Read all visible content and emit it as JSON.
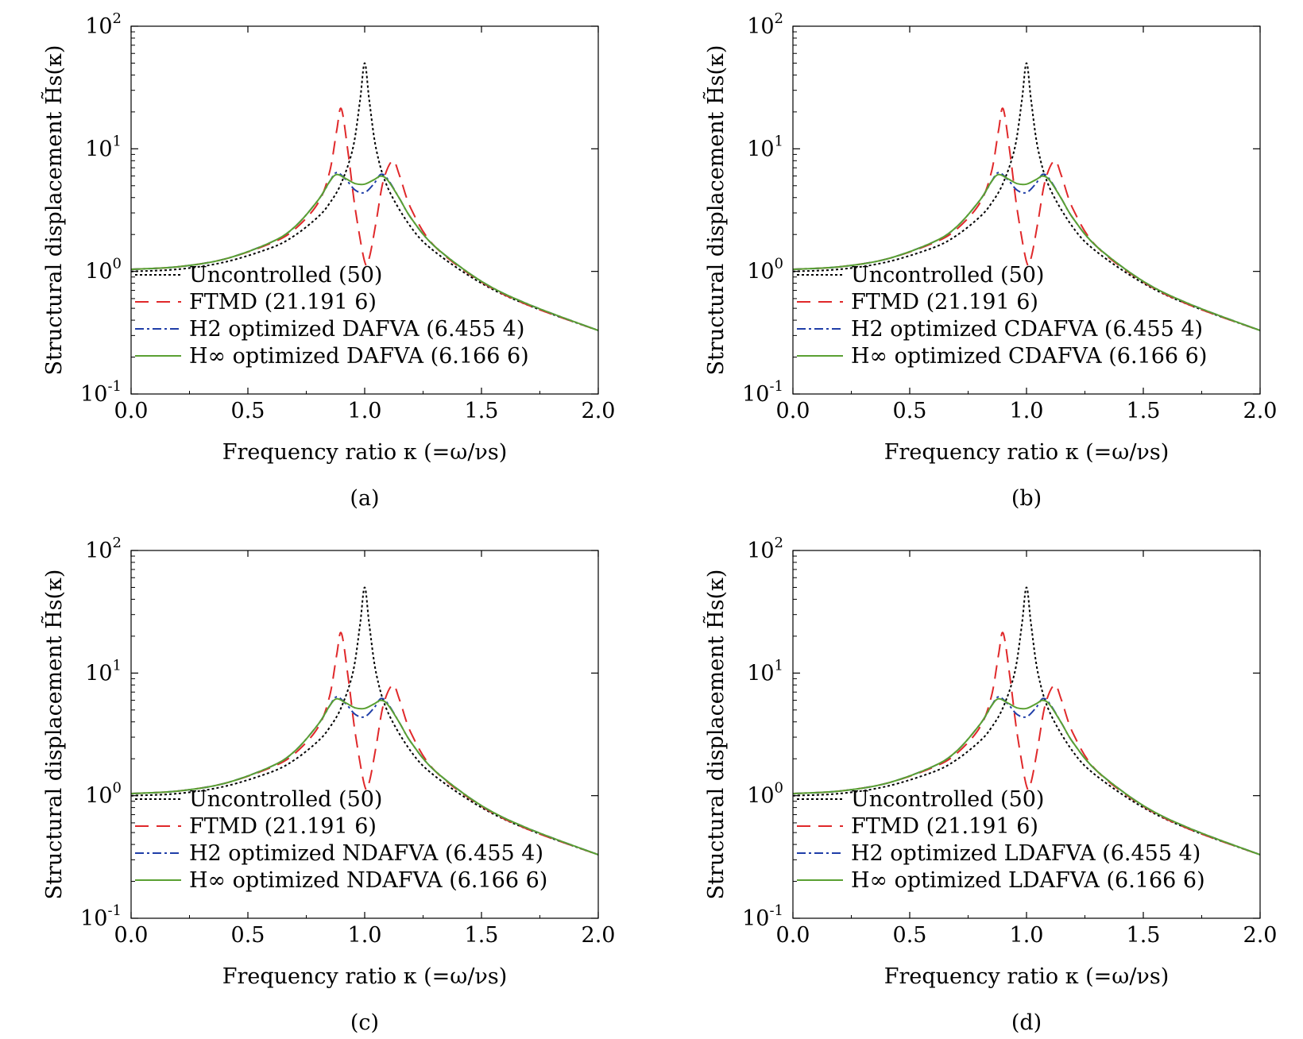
{
  "figure": {
    "panels": [
      {
        "caption": "(a)",
        "ylabel": "Structural displacement H̃s(κ)",
        "xlabel": "Frequency ratio κ (=ω/νs)",
        "legend": [
          "Uncontrolled (50)",
          "FTMD (21.191 6)",
          "H2 optimized DAFVA (6.455 4)",
          "H∞ optimized DAFVA (6.166 6)"
        ]
      },
      {
        "caption": "(b)",
        "ylabel": "Structural displacement H̃s(κ)",
        "xlabel": "Frequency ratio κ (=ω/νs)",
        "legend": [
          "Uncontrolled (50)",
          "FTMD (21.191 6)",
          "H2 optimized CDAFVA (6.455 4)",
          "H∞ optimized CDAFVA (6.166 6)"
        ]
      },
      {
        "caption": "(c)",
        "ylabel": "Structural displacement H̃s(κ)",
        "xlabel": "Frequency ratio κ (=ω/νs)",
        "legend": [
          "Uncontrolled (50)",
          "FTMD (21.191 6)",
          "H2 optimized NDAFVA (6.455 4)",
          "H∞ optimized NDAFVA (6.166 6)"
        ]
      },
      {
        "caption": "(d)",
        "ylabel": "Structural displacement H̃s(κ)",
        "xlabel": "Frequency ratio κ (=ω/νs)",
        "legend": [
          "Uncontrolled (50)",
          "FTMD (21.191 6)",
          "H2 optimized LDAFVA (6.455 4)",
          "H∞ optimized LDAFVA (6.166 6)"
        ]
      }
    ]
  },
  "chart_data": [
    {
      "type": "line",
      "caption": "(a)",
      "xlabel": "Frequency ratio κ (=ω/νs)",
      "ylabel": "Structural displacement H̃s(κ)",
      "xlim": [
        0,
        2
      ],
      "ylim": [
        0.1,
        100
      ],
      "yscale": "log",
      "xticks": [
        "0.0",
        "0.5",
        "1.0",
        "1.5",
        "2.0"
      ],
      "yticks": [
        "10^-1",
        "10^0",
        "10^1",
        "10^2"
      ],
      "legend_position": "lower-left",
      "series": [
        {
          "name": "Uncontrolled (50)",
          "color": "#000000",
          "style": "dotted",
          "x": [
            0,
            0.2,
            0.4,
            0.6,
            0.7,
            0.8,
            0.85,
            0.9,
            0.95,
            0.98,
            1.0,
            1.02,
            1.05,
            1.1,
            1.2,
            1.3,
            1.5,
            1.7,
            2.0
          ],
          "y": [
            1.0,
            1.04,
            1.19,
            1.56,
            1.96,
            2.78,
            3.6,
            5.26,
            10.2,
            24.7,
            50,
            24.5,
            9.8,
            4.76,
            2.27,
            1.45,
            0.8,
            0.53,
            0.33
          ]
        },
        {
          "name": "FTMD (21.191 6)",
          "color": "#e0282a",
          "style": "dashed",
          "x": [
            0,
            0.2,
            0.4,
            0.6,
            0.7,
            0.8,
            0.85,
            0.88,
            0.9,
            0.93,
            0.96,
            1.0,
            1.02,
            1.05,
            1.08,
            1.12,
            1.15,
            1.2,
            1.3,
            1.5,
            1.7,
            2.0
          ],
          "y": [
            1.04,
            1.09,
            1.26,
            1.7,
            2.2,
            3.6,
            6.5,
            14,
            21.2,
            9,
            3.2,
            1.2,
            1.3,
            2.6,
            5.5,
            8.0,
            6.0,
            3.2,
            1.6,
            0.82,
            0.53,
            0.33
          ]
        },
        {
          "name": "H2 optimized DAFVA (6.455 4)",
          "color": "#1f3ea8",
          "style": "dashdot",
          "x": [
            0,
            0.2,
            0.4,
            0.6,
            0.7,
            0.8,
            0.85,
            0.88,
            0.92,
            0.96,
            1.0,
            1.04,
            1.07,
            1.1,
            1.15,
            1.2,
            1.3,
            1.5,
            1.7,
            2.0
          ],
          "y": [
            1.04,
            1.09,
            1.26,
            1.73,
            2.3,
            3.8,
            5.4,
            6.4,
            5.6,
            4.6,
            4.4,
            5.2,
            6.2,
            5.6,
            3.9,
            2.7,
            1.6,
            0.83,
            0.54,
            0.33
          ]
        },
        {
          "name": "H∞ optimized DAFVA (6.166 6)",
          "color": "#5aa032",
          "style": "solid",
          "x": [
            0,
            0.2,
            0.4,
            0.6,
            0.7,
            0.8,
            0.85,
            0.88,
            0.92,
            0.96,
            1.0,
            1.04,
            1.07,
            1.1,
            1.15,
            1.2,
            1.3,
            1.5,
            1.7,
            2.0
          ],
          "y": [
            1.04,
            1.09,
            1.26,
            1.73,
            2.3,
            3.8,
            5.4,
            6.17,
            5.7,
            5.2,
            5.15,
            5.6,
            6.0,
            5.5,
            3.9,
            2.7,
            1.6,
            0.83,
            0.54,
            0.33
          ]
        }
      ]
    },
    {
      "type": "line",
      "caption": "(b)",
      "xlabel": "Frequency ratio κ (=ω/νs)",
      "ylabel": "Structural displacement H̃s(κ)",
      "xlim": [
        0,
        2
      ],
      "ylim": [
        0.1,
        100
      ],
      "yscale": "log",
      "xticks": [
        "0.0",
        "0.5",
        "1.0",
        "1.5",
        "2.0"
      ],
      "yticks": [
        "10^-1",
        "10^0",
        "10^1",
        "10^2"
      ],
      "legend_position": "lower-left",
      "series": [
        {
          "name": "Uncontrolled (50)",
          "color": "#000000",
          "style": "dotted",
          "x": [
            0,
            0.2,
            0.4,
            0.6,
            0.7,
            0.8,
            0.85,
            0.9,
            0.95,
            0.98,
            1.0,
            1.02,
            1.05,
            1.1,
            1.2,
            1.3,
            1.5,
            1.7,
            2.0
          ],
          "y": [
            1.0,
            1.04,
            1.19,
            1.56,
            1.96,
            2.78,
            3.6,
            5.26,
            10.2,
            24.7,
            50,
            24.5,
            9.8,
            4.76,
            2.27,
            1.45,
            0.8,
            0.53,
            0.33
          ]
        },
        {
          "name": "FTMD (21.191 6)",
          "color": "#e0282a",
          "style": "dashed",
          "x": [
            0,
            0.2,
            0.4,
            0.6,
            0.7,
            0.8,
            0.85,
            0.88,
            0.9,
            0.93,
            0.96,
            1.0,
            1.02,
            1.05,
            1.08,
            1.12,
            1.15,
            1.2,
            1.3,
            1.5,
            1.7,
            2.0
          ],
          "y": [
            1.04,
            1.09,
            1.26,
            1.7,
            2.2,
            3.6,
            6.5,
            14,
            21.2,
            9,
            3.2,
            1.2,
            1.3,
            2.6,
            5.5,
            8.0,
            6.0,
            3.2,
            1.6,
            0.82,
            0.53,
            0.33
          ]
        },
        {
          "name": "H2 optimized CDAFVA (6.455 4)",
          "color": "#1f3ea8",
          "style": "dashdot",
          "x": [
            0,
            0.2,
            0.4,
            0.6,
            0.7,
            0.8,
            0.85,
            0.88,
            0.92,
            0.96,
            1.0,
            1.04,
            1.07,
            1.1,
            1.15,
            1.2,
            1.3,
            1.5,
            1.7,
            2.0
          ],
          "y": [
            1.04,
            1.09,
            1.26,
            1.73,
            2.3,
            3.8,
            5.4,
            6.4,
            5.6,
            4.6,
            4.4,
            5.2,
            6.2,
            5.6,
            3.9,
            2.7,
            1.6,
            0.83,
            0.54,
            0.33
          ]
        },
        {
          "name": "H∞ optimized CDAFVA (6.166 6)",
          "color": "#5aa032",
          "style": "solid",
          "x": [
            0,
            0.2,
            0.4,
            0.6,
            0.7,
            0.8,
            0.85,
            0.88,
            0.92,
            0.96,
            1.0,
            1.04,
            1.07,
            1.1,
            1.15,
            1.2,
            1.3,
            1.5,
            1.7,
            2.0
          ],
          "y": [
            1.04,
            1.09,
            1.26,
            1.73,
            2.3,
            3.8,
            5.4,
            6.17,
            5.7,
            5.2,
            5.15,
            5.6,
            6.0,
            5.5,
            3.9,
            2.7,
            1.6,
            0.83,
            0.54,
            0.33
          ]
        }
      ]
    },
    {
      "type": "line",
      "caption": "(c)",
      "xlabel": "Frequency ratio κ (=ω/νs)",
      "ylabel": "Structural displacement H̃s(κ)",
      "xlim": [
        0,
        2
      ],
      "ylim": [
        0.1,
        100
      ],
      "yscale": "log",
      "xticks": [
        "0.0",
        "0.5",
        "1.0",
        "1.5",
        "2.0"
      ],
      "yticks": [
        "10^-1",
        "10^0",
        "10^1",
        "10^2"
      ],
      "legend_position": "lower-left",
      "series": [
        {
          "name": "Uncontrolled (50)",
          "color": "#000000",
          "style": "dotted",
          "x": [
            0,
            0.2,
            0.4,
            0.6,
            0.7,
            0.8,
            0.85,
            0.9,
            0.95,
            0.98,
            1.0,
            1.02,
            1.05,
            1.1,
            1.2,
            1.3,
            1.5,
            1.7,
            2.0
          ],
          "y": [
            1.0,
            1.04,
            1.19,
            1.56,
            1.96,
            2.78,
            3.6,
            5.26,
            10.2,
            24.7,
            50,
            24.5,
            9.8,
            4.76,
            2.27,
            1.45,
            0.8,
            0.53,
            0.33
          ]
        },
        {
          "name": "FTMD (21.191 6)",
          "color": "#e0282a",
          "style": "dashed",
          "x": [
            0,
            0.2,
            0.4,
            0.6,
            0.7,
            0.8,
            0.85,
            0.88,
            0.9,
            0.93,
            0.96,
            1.0,
            1.02,
            1.05,
            1.08,
            1.12,
            1.15,
            1.2,
            1.3,
            1.5,
            1.7,
            2.0
          ],
          "y": [
            1.04,
            1.09,
            1.26,
            1.7,
            2.2,
            3.6,
            6.5,
            14,
            21.2,
            9,
            3.2,
            1.2,
            1.3,
            2.6,
            5.5,
            8.0,
            6.0,
            3.2,
            1.6,
            0.82,
            0.53,
            0.33
          ]
        },
        {
          "name": "H2 optimized NDAFVA (6.455 4)",
          "color": "#1f3ea8",
          "style": "dashdot",
          "x": [
            0,
            0.2,
            0.4,
            0.6,
            0.7,
            0.8,
            0.85,
            0.88,
            0.92,
            0.96,
            1.0,
            1.04,
            1.07,
            1.1,
            1.15,
            1.2,
            1.3,
            1.5,
            1.7,
            2.0
          ],
          "y": [
            1.04,
            1.09,
            1.26,
            1.73,
            2.3,
            3.8,
            5.4,
            6.4,
            5.6,
            4.6,
            4.4,
            5.2,
            6.2,
            5.6,
            3.9,
            2.7,
            1.6,
            0.83,
            0.54,
            0.33
          ]
        },
        {
          "name": "H∞ optimized NDAFVA (6.166 6)",
          "color": "#5aa032",
          "style": "solid",
          "x": [
            0,
            0.2,
            0.4,
            0.6,
            0.7,
            0.8,
            0.85,
            0.88,
            0.92,
            0.96,
            1.0,
            1.04,
            1.07,
            1.1,
            1.15,
            1.2,
            1.3,
            1.5,
            1.7,
            2.0
          ],
          "y": [
            1.04,
            1.09,
            1.26,
            1.73,
            2.3,
            3.8,
            5.4,
            6.17,
            5.7,
            5.2,
            5.15,
            5.6,
            6.0,
            5.5,
            3.9,
            2.7,
            1.6,
            0.83,
            0.54,
            0.33
          ]
        }
      ]
    },
    {
      "type": "line",
      "caption": "(d)",
      "xlabel": "Frequency ratio κ (=ω/νs)",
      "ylabel": "Structural displacement H̃s(κ)",
      "xlim": [
        0,
        2
      ],
      "ylim": [
        0.1,
        100
      ],
      "yscale": "log",
      "xticks": [
        "0.0",
        "0.5",
        "1.0",
        "1.5",
        "2.0"
      ],
      "yticks": [
        "10^-1",
        "10^0",
        "10^1",
        "10^2"
      ],
      "legend_position": "lower-left",
      "series": [
        {
          "name": "Uncontrolled (50)",
          "color": "#000000",
          "style": "dotted",
          "x": [
            0,
            0.2,
            0.4,
            0.6,
            0.7,
            0.8,
            0.85,
            0.9,
            0.95,
            0.98,
            1.0,
            1.02,
            1.05,
            1.1,
            1.2,
            1.3,
            1.5,
            1.7,
            2.0
          ],
          "y": [
            1.0,
            1.04,
            1.19,
            1.56,
            1.96,
            2.78,
            3.6,
            5.26,
            10.2,
            24.7,
            50,
            24.5,
            9.8,
            4.76,
            2.27,
            1.45,
            0.8,
            0.53,
            0.33
          ]
        },
        {
          "name": "FTMD (21.191 6)",
          "color": "#e0282a",
          "style": "dashed",
          "x": [
            0,
            0.2,
            0.4,
            0.6,
            0.7,
            0.8,
            0.85,
            0.88,
            0.9,
            0.93,
            0.96,
            1.0,
            1.02,
            1.05,
            1.08,
            1.12,
            1.15,
            1.2,
            1.3,
            1.5,
            1.7,
            2.0
          ],
          "y": [
            1.04,
            1.09,
            1.26,
            1.7,
            2.2,
            3.6,
            6.5,
            14,
            21.2,
            9,
            3.2,
            1.2,
            1.3,
            2.6,
            5.5,
            8.0,
            6.0,
            3.2,
            1.6,
            0.82,
            0.53,
            0.33
          ]
        },
        {
          "name": "H2 optimized LDAFVA (6.455 4)",
          "color": "#1f3ea8",
          "style": "dashdot",
          "x": [
            0,
            0.2,
            0.4,
            0.6,
            0.7,
            0.8,
            0.85,
            0.88,
            0.92,
            0.96,
            1.0,
            1.04,
            1.07,
            1.1,
            1.15,
            1.2,
            1.3,
            1.5,
            1.7,
            2.0
          ],
          "y": [
            1.04,
            1.09,
            1.26,
            1.73,
            2.3,
            3.8,
            5.4,
            6.4,
            5.6,
            4.6,
            4.4,
            5.2,
            6.2,
            5.6,
            3.9,
            2.7,
            1.6,
            0.83,
            0.54,
            0.33
          ]
        },
        {
          "name": "H∞ optimized LDAFVA (6.166 6)",
          "color": "#5aa032",
          "style": "solid",
          "x": [
            0,
            0.2,
            0.4,
            0.6,
            0.7,
            0.8,
            0.85,
            0.88,
            0.92,
            0.96,
            1.0,
            1.04,
            1.07,
            1.1,
            1.15,
            1.2,
            1.3,
            1.5,
            1.7,
            2.0
          ],
          "y": [
            1.04,
            1.09,
            1.26,
            1.73,
            2.3,
            3.8,
            5.4,
            6.17,
            5.7,
            5.2,
            5.15,
            5.6,
            6.0,
            5.5,
            3.9,
            2.7,
            1.6,
            0.83,
            0.54,
            0.33
          ]
        }
      ]
    }
  ]
}
